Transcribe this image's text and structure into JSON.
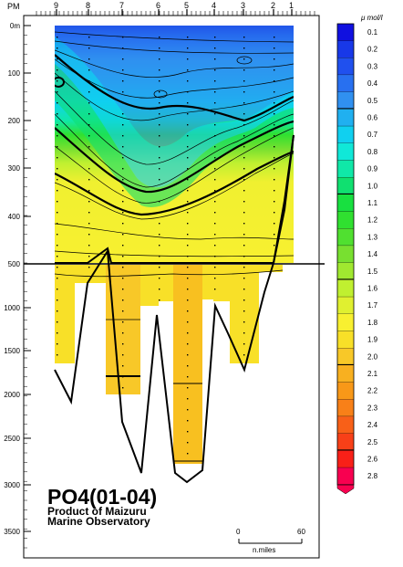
{
  "chart_data": {
    "type": "heatmap",
    "title": "PO4(01-04)",
    "subtitle": "Product of Maizuru\nMarine Observatory",
    "top_axis": {
      "label": "PM",
      "stations": [
        "9",
        "8",
        "7",
        "6",
        "5",
        "4",
        "3",
        "2",
        "1"
      ]
    },
    "depth_axis": {
      "ticks": [
        "0m",
        "100",
        "200",
        "300",
        "400",
        "500",
        "1000",
        "1500",
        "2000",
        "2500",
        "3000",
        "3500"
      ],
      "upper_range_m": [
        0,
        500
      ],
      "lower_range_m": [
        500,
        3600
      ]
    },
    "scale_bar": {
      "start": "0",
      "end": "60",
      "unit": "n.miles"
    },
    "colorbar": {
      "unit": "μ mol/l",
      "levels": [
        "0.1",
        "0.2",
        "0.3",
        "0.4",
        "0.5",
        "0.6",
        "0.7",
        "0.8",
        "0.9",
        "1.0",
        "1.1",
        "1.2",
        "1.3",
        "1.4",
        "1.5",
        "1.6",
        "1.7",
        "1.8",
        "1.9",
        "2.0",
        "2.1",
        "2.2",
        "2.3",
        "2.4",
        "2.5",
        "2.6",
        "2.8"
      ],
      "emphasized": [
        "0.5",
        "1.0",
        "1.5",
        "2.0",
        "2.5"
      ],
      "colors": [
        "#1010e0",
        "#1838e8",
        "#2050ee",
        "#2870f0",
        "#3090f0",
        "#20b0f0",
        "#10d0f0",
        "#10e8d8",
        "#10e8a8",
        "#10e070",
        "#18e040",
        "#30e030",
        "#50e030",
        "#78e030",
        "#a0e830",
        "#c0f030",
        "#e0f030",
        "#f8f030",
        "#f8e028",
        "#f8c828",
        "#f8b020",
        "#f89818",
        "#f88018",
        "#f86018",
        "#f84018",
        "#f82018",
        "#f80050"
      ]
    }
  }
}
